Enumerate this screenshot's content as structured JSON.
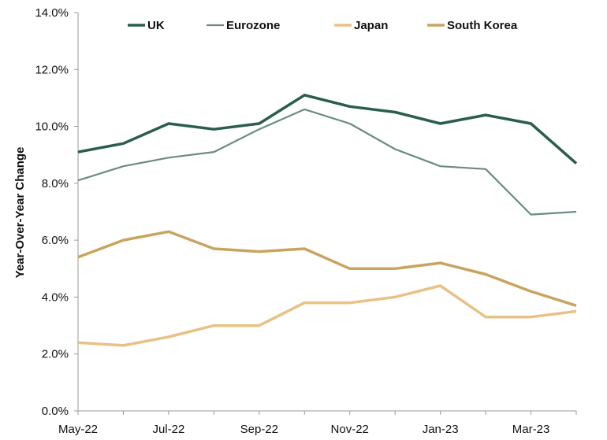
{
  "chart_data": {
    "type": "line",
    "title": "",
    "xlabel": "",
    "ylabel": "Year-Over-Year Change",
    "x": [
      "May-22",
      "Jun-22",
      "Jul-22",
      "Aug-22",
      "Sep-22",
      "Oct-22",
      "Nov-22",
      "Dec-22",
      "Jan-23",
      "Feb-23",
      "Mar-23",
      "Apr-23"
    ],
    "x_tick_labels": [
      "May-22",
      "Jul-22",
      "Sep-22",
      "Nov-22",
      "Jan-23",
      "Mar-23"
    ],
    "y_ticks": [
      "0.0%",
      "2.0%",
      "4.0%",
      "6.0%",
      "8.0%",
      "10.0%",
      "12.0%",
      "14.0%"
    ],
    "ylim": [
      0,
      14
    ],
    "grid": false,
    "legend_position": "top",
    "series": [
      {
        "name": "UK",
        "color": "#2a5e4c",
        "width": 3.5,
        "values": [
          9.1,
          9.4,
          10.1,
          9.9,
          10.1,
          11.1,
          10.7,
          10.5,
          10.1,
          10.4,
          10.1,
          8.7
        ]
      },
      {
        "name": "Eurozone",
        "color": "#6a8c7e",
        "width": 2.2,
        "values": [
          8.1,
          8.6,
          8.9,
          9.1,
          9.9,
          10.6,
          10.1,
          9.2,
          8.6,
          8.5,
          6.9,
          7.0
        ]
      },
      {
        "name": "Japan",
        "color": "#e8c185",
        "width": 3.5,
        "values": [
          2.4,
          2.3,
          2.6,
          3.0,
          3.0,
          3.8,
          3.8,
          4.0,
          4.4,
          3.3,
          3.3,
          3.5
        ]
      },
      {
        "name": "South Korea",
        "color": "#c9a45f",
        "width": 3.5,
        "values": [
          5.4,
          6.0,
          6.3,
          5.7,
          5.6,
          5.7,
          5.0,
          5.0,
          5.2,
          4.8,
          4.2,
          3.7
        ]
      }
    ]
  }
}
